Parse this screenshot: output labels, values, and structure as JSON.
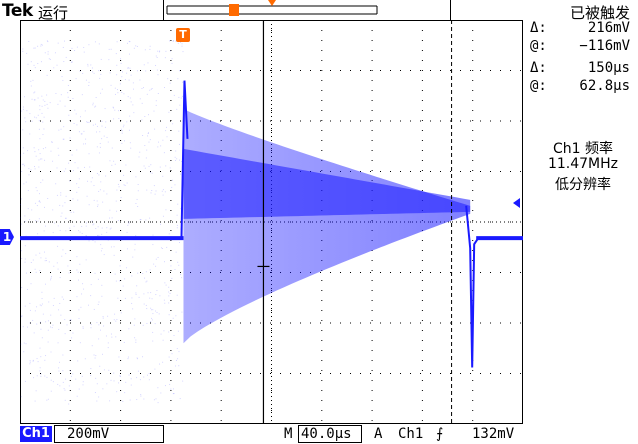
{
  "header": {
    "brand": "Tek",
    "run_state": "运行",
    "trigger_state": "已被触发"
  },
  "readouts": {
    "volt_delta_symbol": "Δ:",
    "volt_delta_value": "216mV",
    "volt_at_symbol": "@:",
    "volt_at_value": "−116mV",
    "time_delta_symbol": "Δ:",
    "time_delta_value": "150μs",
    "time_at_symbol": "@:",
    "time_at_value": "62.8μs"
  },
  "freq_note": {
    "line1": "Ch1 频率",
    "line2": "11.47MHz",
    "line3": "低分辨率"
  },
  "markers": {
    "trigger_marker": "T",
    "channel_marker": "1"
  },
  "footer": {
    "channel": "Ch1",
    "volts_div": "200mV",
    "time_label": "M",
    "time_div": "40.0μs",
    "trigger_mode": "A",
    "trigger_source": "Ch1",
    "trigger_slope": "⨍",
    "trigger_level": "132mV"
  },
  "colors": {
    "trace": "#1a1aff",
    "trigger_marker": "#ff6a00",
    "grid": "#000000"
  },
  "waveform": {
    "baseline_y": 0.54,
    "spike_top_y": 0.15,
    "envelope_top_start": 0.22,
    "envelope_bottom_start": 0.8,
    "decay_end_y": 0.46,
    "start_x": 0.325,
    "end_x": 0.895
  }
}
